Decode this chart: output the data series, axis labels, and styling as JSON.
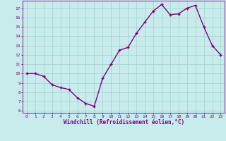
{
  "x": [
    0,
    1,
    2,
    3,
    4,
    5,
    6,
    7,
    8,
    9,
    10,
    11,
    12,
    13,
    14,
    15,
    16,
    17,
    18,
    19,
    20,
    21,
    22,
    23
  ],
  "y": [
    10,
    10,
    9.7,
    8.8,
    8.5,
    8.3,
    7.4,
    6.8,
    6.5,
    9.5,
    11.0,
    12.5,
    12.8,
    14.3,
    15.5,
    16.7,
    17.4,
    16.3,
    16.4,
    17.0,
    17.3,
    15.0,
    13.0,
    12.0
  ],
  "line_color": "#800080",
  "marker": "+",
  "bg_color": "#c8ecec",
  "grid_color": "#a8d4d4",
  "tick_color": "#800080",
  "label_color": "#800080",
  "xlabel": "Windchill (Refroidissement éolien,°C)",
  "xlim": [
    -0.5,
    23.5
  ],
  "ylim": [
    5.8,
    17.8
  ],
  "yticks": [
    6,
    7,
    8,
    9,
    10,
    11,
    12,
    13,
    14,
    15,
    16,
    17
  ],
  "xticks": [
    0,
    1,
    2,
    3,
    4,
    5,
    6,
    7,
    8,
    9,
    10,
    11,
    12,
    13,
    14,
    15,
    16,
    17,
    18,
    19,
    20,
    21,
    22,
    23
  ]
}
